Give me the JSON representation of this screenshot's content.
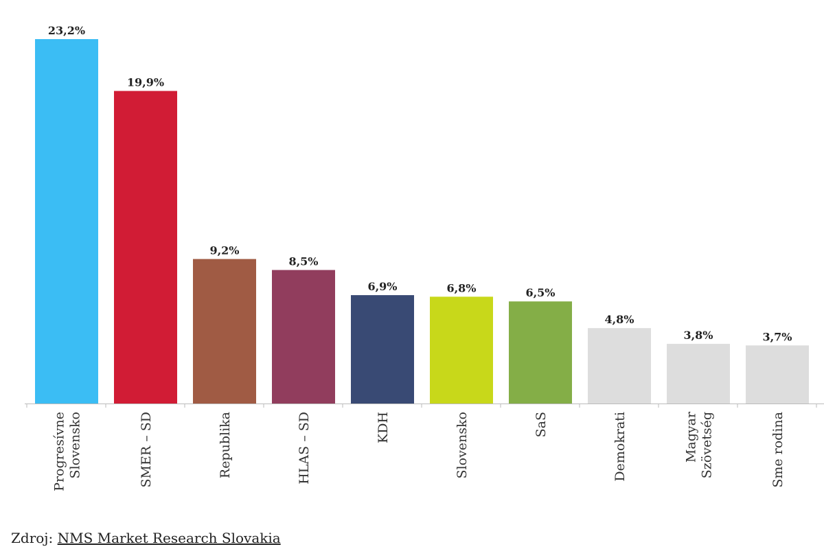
{
  "chart_data": {
    "type": "bar",
    "categories": [
      [
        "Progresívne",
        "Slovensko"
      ],
      [
        "SMER – SD"
      ],
      [
        "Republika"
      ],
      [
        "HLAS – SD"
      ],
      [
        "KDH"
      ],
      [
        "Slovensko"
      ],
      [
        "SaS"
      ],
      [
        "Demokrati"
      ],
      [
        "Magyar",
        "Szövetség"
      ],
      [
        "Sme rodina"
      ]
    ],
    "values": [
      23.2,
      19.9,
      9.2,
      8.5,
      6.9,
      6.8,
      6.5,
      4.8,
      3.8,
      3.7
    ],
    "value_labels": [
      "23,2%",
      "19,9%",
      "9,2%",
      "8,5%",
      "6,9%",
      "6,8%",
      "6,5%",
      "4,8%",
      "3,8%",
      "3,7%"
    ],
    "colors": [
      "#3bbdf4",
      "#d11c35",
      "#a05b44",
      "#913d5d",
      "#394a74",
      "#c8d81a",
      "#84ae47",
      "#dddddd",
      "#dddddd",
      "#dddddd"
    ],
    "ylim": [
      0,
      23.2
    ],
    "grid": false,
    "legend": "none"
  },
  "source": {
    "prefix": "Zdroj:",
    "link_text": "NMS Market Research Slovakia"
  }
}
